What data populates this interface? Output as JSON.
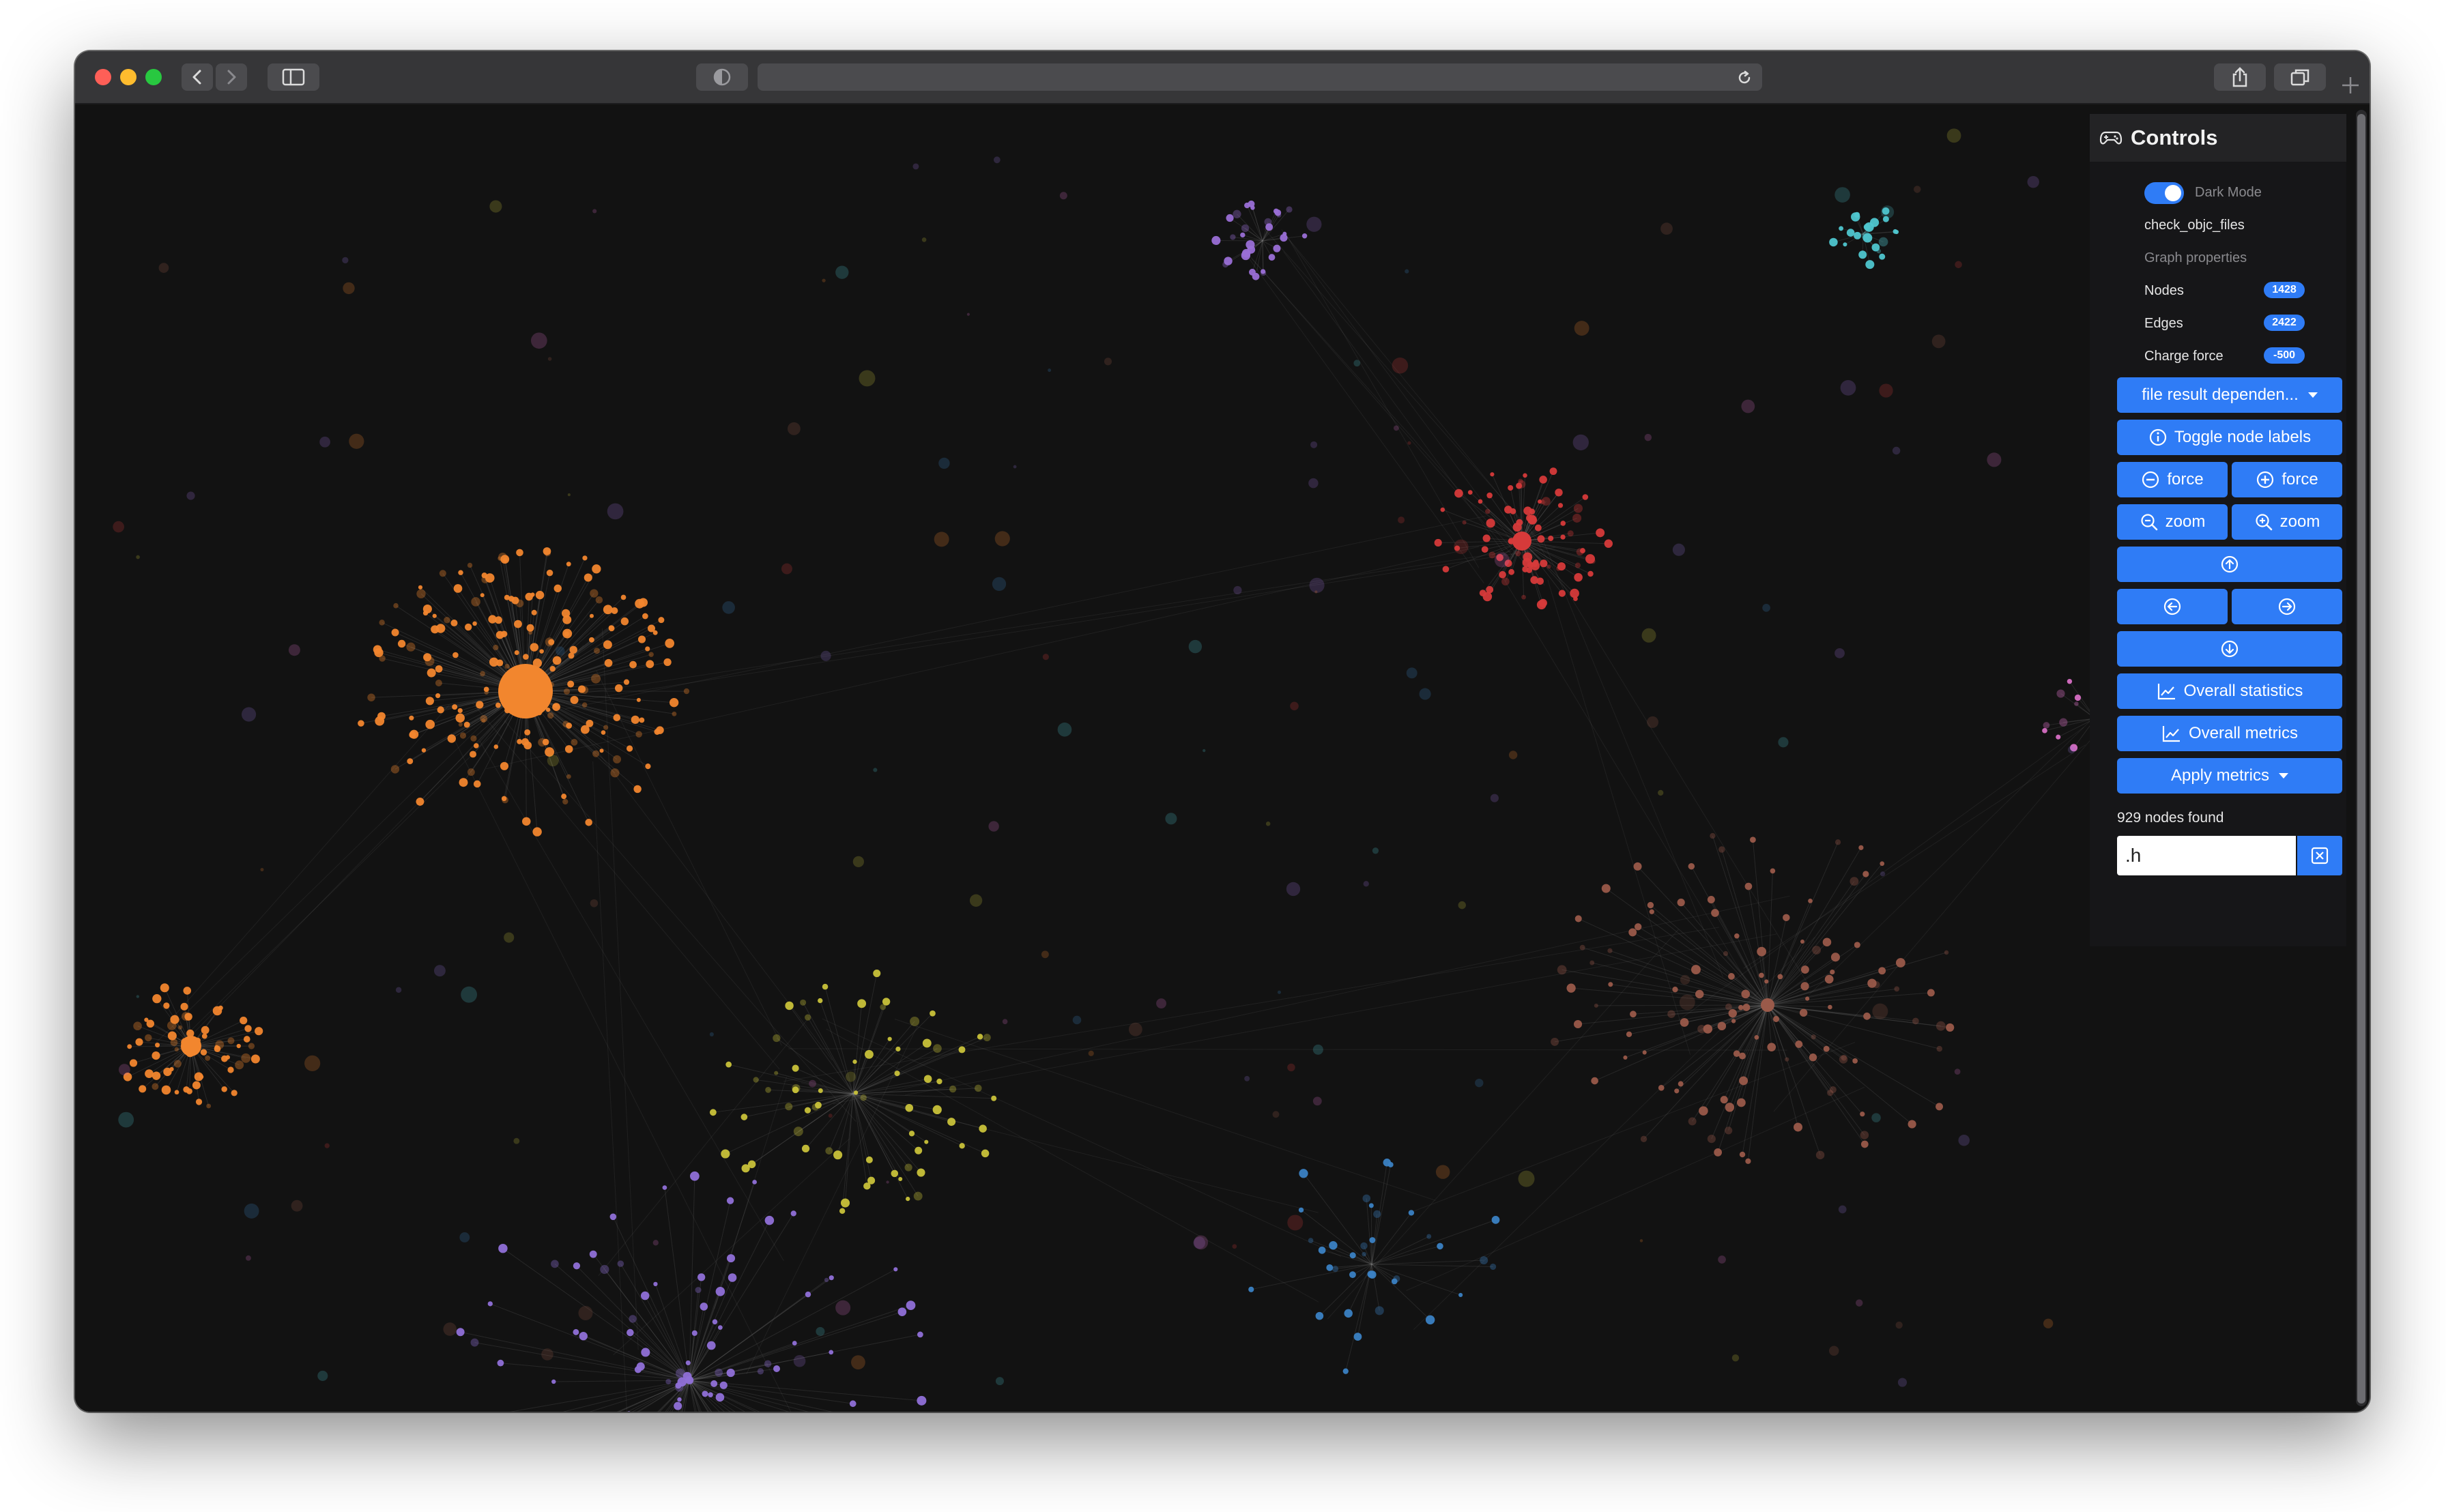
{
  "controls": {
    "title": "Controls",
    "dark_mode_label": "Dark Mode",
    "dark_mode_on": true,
    "graph_name": "check_objc_files",
    "graph_properties_label": "Graph properties",
    "nodes_label": "Nodes",
    "nodes_value": "1428",
    "edges_label": "Edges",
    "edges_value": "2422",
    "charge_label": "Charge force",
    "charge_value": "-500",
    "dropdown_label": "file result dependen...",
    "toggle_labels": "Toggle node labels",
    "force_minus": "force",
    "force_plus": "force",
    "zoom_out": "zoom",
    "zoom_in": "zoom",
    "overall_statistics": "Overall statistics",
    "overall_metrics": "Overall metrics",
    "apply_metrics": "Apply metrics",
    "nodes_found": "929 nodes found",
    "search_value": ".h"
  },
  "graph": {
    "clusters": [
      {
        "name": "orange-main",
        "color": "#f2862e"
      },
      {
        "name": "red",
        "color": "#d63a3a"
      },
      {
        "name": "purple-top",
        "color": "#9a6fd6"
      },
      {
        "name": "cyan",
        "color": "#4fc6cf"
      },
      {
        "name": "brown",
        "color": "#9a5a4a"
      },
      {
        "name": "olive",
        "color": "#c9c23a"
      },
      {
        "name": "purple-bottom",
        "color": "#9070d8"
      },
      {
        "name": "blue",
        "color": "#3b82c4"
      },
      {
        "name": "pink",
        "color": "#d76fc4"
      }
    ]
  },
  "icons": {
    "back": "chevron-left-icon",
    "forward": "chevron-right-icon",
    "sidebar": "sidebar-icon",
    "privacy": "shield-icon",
    "reload": "reload-icon",
    "share": "share-icon",
    "tabs": "tabs-icon",
    "new_tab": "plus-icon",
    "controls": "gamepad-icon",
    "info": "info-icon",
    "minus": "minus-circle-icon",
    "plus": "plus-circle-icon",
    "zoom_out": "zoom-out-icon",
    "zoom_in": "zoom-in-icon",
    "up": "arrow-up-icon",
    "left": "arrow-left-icon",
    "right": "arrow-right-icon",
    "down": "arrow-down-icon",
    "chart": "chart-line-icon",
    "clear": "clear-icon"
  }
}
